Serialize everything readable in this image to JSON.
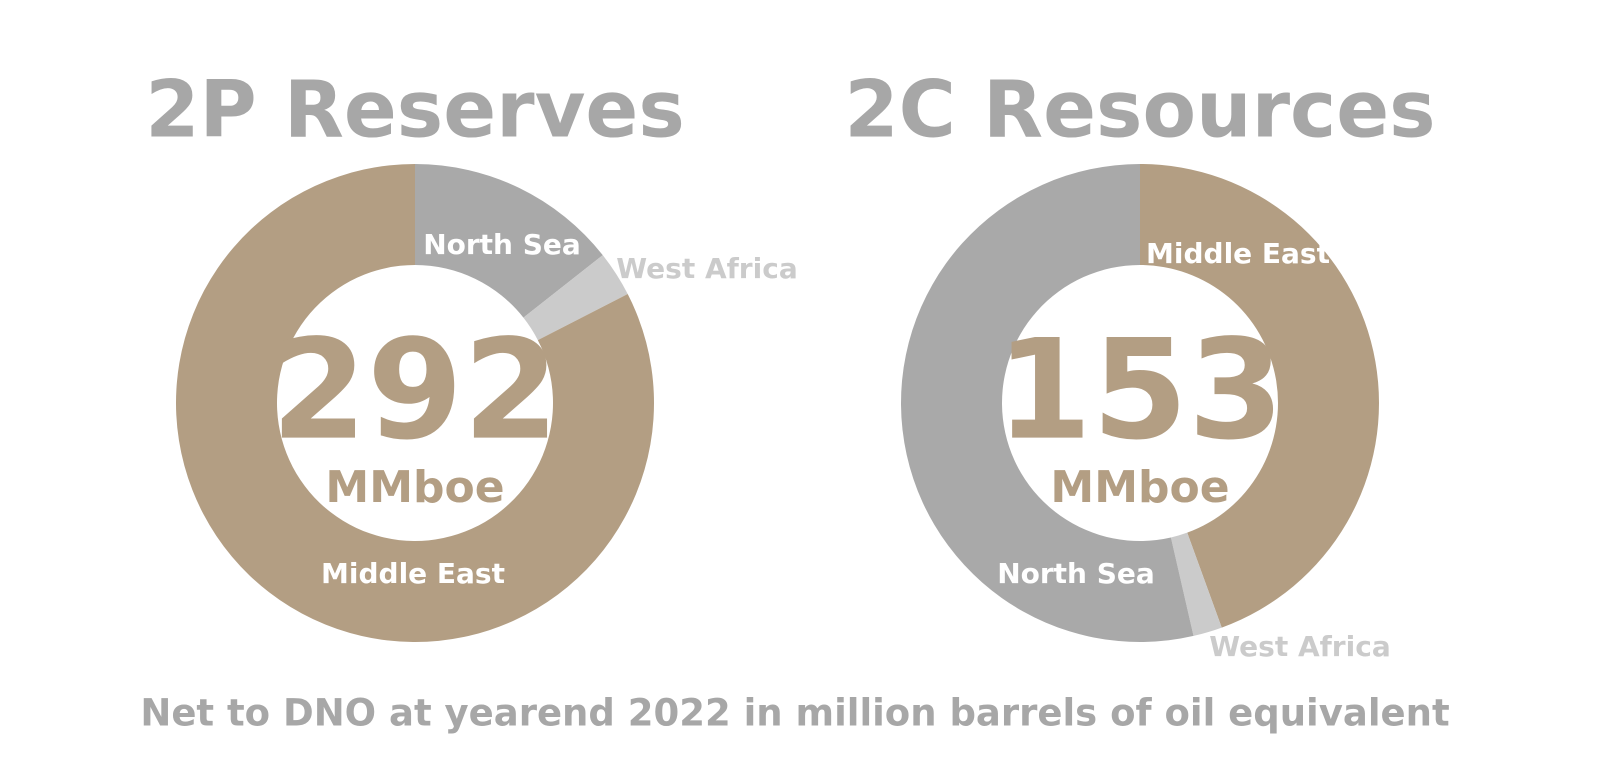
{
  "chart_data": [
    {
      "type": "donut",
      "title": "2P Reserves",
      "center_value": "292",
      "center_unit": "MMboe",
      "categories": [
        "North Sea",
        "West Africa",
        "Middle East"
      ],
      "values": [
        42,
        9,
        241
      ],
      "colors": [
        "#a9a9a9",
        "#cbcbcb",
        "#b39e83"
      ]
    },
    {
      "type": "donut",
      "title": "2C Resources",
      "center_value": "153",
      "center_unit": "MMboe",
      "categories": [
        "Middle East",
        "West Africa",
        "North Sea"
      ],
      "values": [
        68,
        3,
        82
      ],
      "colors": [
        "#b39e83",
        "#cbcbcb",
        "#a9a9a9"
      ]
    }
  ],
  "caption": "Net to DNO at yearend 2022 in million barrels of oil equivalent"
}
